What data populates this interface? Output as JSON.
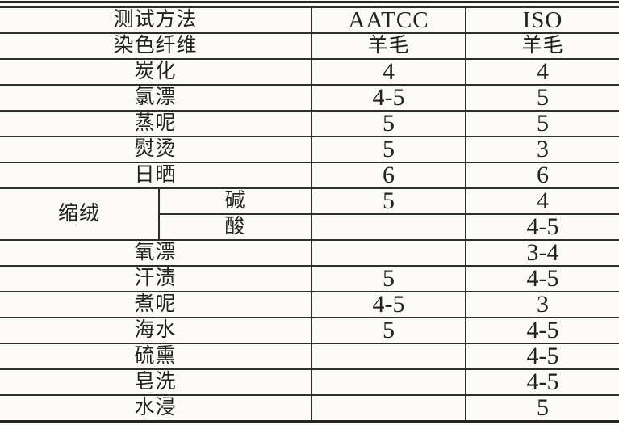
{
  "colors": {
    "paper": "#fbfaf7",
    "ink": "#222222",
    "rule": "#2e2e2e"
  },
  "table": {
    "description_labels": {
      "method_header": "测试方法",
      "fiber_label": "染色纤维"
    },
    "rows": [
      {
        "method": "测试方法",
        "aatcc": "AATCC",
        "iso": "ISO"
      },
      {
        "method": "染色纤维",
        "aatcc": "羊毛",
        "iso": "羊毛"
      },
      {
        "method": "炭化",
        "aatcc": "4",
        "iso": "4"
      },
      {
        "method": "氯漂",
        "aatcc": "4-5",
        "iso": "5"
      },
      {
        "method": "蒸呢",
        "aatcc": "5",
        "iso": "5"
      },
      {
        "method": "熨烫",
        "aatcc": "5",
        "iso": "3"
      },
      {
        "method": "日晒",
        "aatcc": "6",
        "iso": "6"
      },
      {
        "group": "缩绒",
        "method": "碱",
        "aatcc": "5",
        "iso": "4"
      },
      {
        "method": "酸",
        "aatcc": "",
        "iso": "4-5"
      },
      {
        "method": "氧漂",
        "aatcc": "",
        "iso": "3-4"
      },
      {
        "method": "汗渍",
        "aatcc": "5",
        "iso": "4-5"
      },
      {
        "method": "煮呢",
        "aatcc": "4-5",
        "iso": "3"
      },
      {
        "method": "海水",
        "aatcc": "5",
        "iso": "4-5"
      },
      {
        "method": "硫熏",
        "aatcc": "",
        "iso": "4-5"
      },
      {
        "method": "皂洗",
        "aatcc": "",
        "iso": "4-5"
      },
      {
        "method": "水浸",
        "aatcc": "",
        "iso": "5"
      }
    ]
  }
}
